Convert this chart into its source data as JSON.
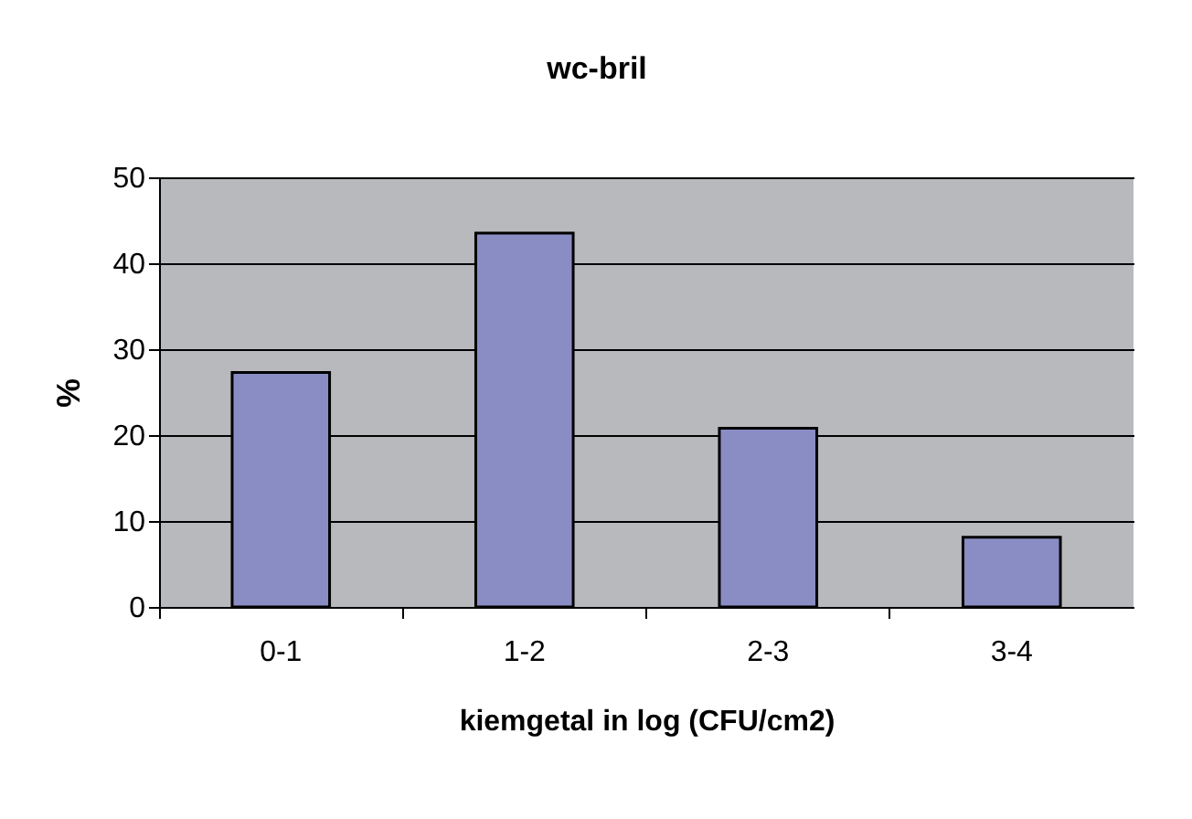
{
  "chart_data": {
    "type": "bar",
    "title": "wc-bril",
    "xlabel": "kiemgetal in log (CFU/cm2)",
    "ylabel": "%",
    "categories": [
      "0-1",
      "1-2",
      "2-3",
      "3-4"
    ],
    "values": [
      27.3,
      43.5,
      20.8,
      8.1
    ],
    "color": "#8a8cc4",
    "ylim": [
      0,
      50
    ],
    "yticks": [
      0,
      10,
      20,
      30,
      40,
      50
    ],
    "grid": "y",
    "legend": false
  }
}
